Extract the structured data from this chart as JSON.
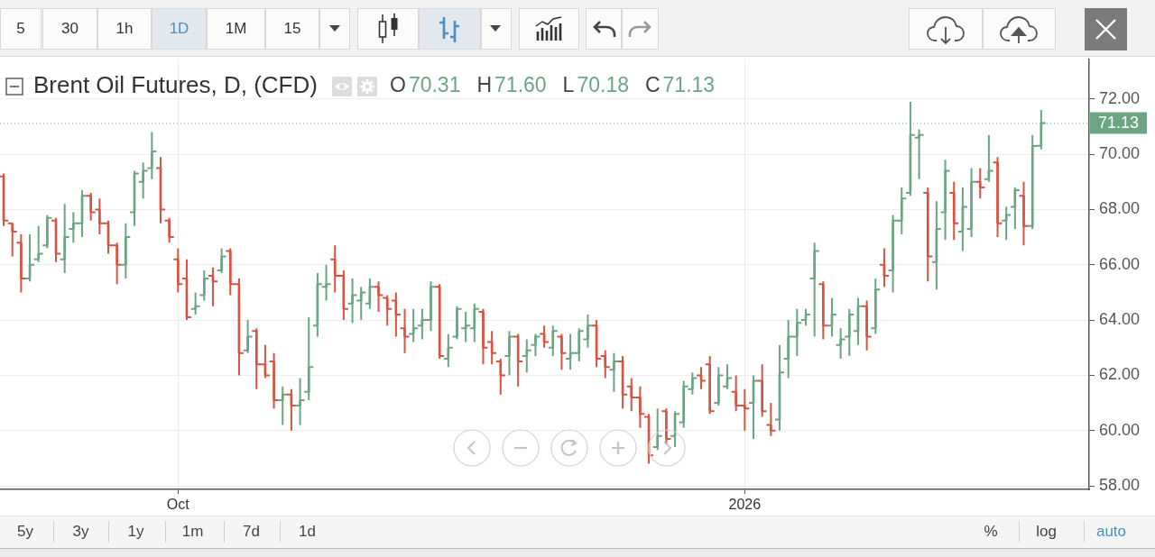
{
  "chart_data": {
    "type": "candlestick",
    "title": "Brent Oil Futures, D, (CFD)",
    "categories": [
      null,
      null,
      null,
      null,
      null,
      null,
      null,
      null,
      null,
      null,
      null,
      null,
      null,
      null,
      null,
      null,
      null,
      null,
      null,
      null,
      "Oct",
      null,
      null,
      null,
      null,
      null,
      null,
      null,
      null,
      null,
      null,
      null,
      null,
      null,
      null,
      null,
      null,
      null,
      null,
      null,
      null,
      null,
      null,
      null,
      null,
      null,
      null,
      null,
      null,
      null,
      null,
      null,
      null,
      null,
      null,
      null,
      null,
      null,
      null,
      null,
      null,
      null,
      null,
      null,
      null,
      null,
      null,
      null,
      null,
      null,
      null,
      null,
      null,
      null,
      null,
      null,
      null,
      null,
      null,
      null,
      null,
      null,
      null,
      null,
      null,
      "2026",
      null,
      null,
      null,
      null,
      null,
      null,
      null,
      null,
      null,
      null,
      null,
      null,
      null,
      null,
      null,
      null,
      null,
      null,
      null,
      null,
      null,
      null,
      null,
      null,
      null,
      null,
      null,
      null,
      null,
      null,
      null,
      null,
      null,
      null
    ],
    "ohlc": [
      [
        69.2,
        69.3,
        67.4,
        67.6
      ],
      [
        67.5,
        67.5,
        66.3,
        67.2
      ],
      [
        66.8,
        67.1,
        65.0,
        65.5
      ],
      [
        65.5,
        67.1,
        65.4,
        66.0
      ],
      [
        66.2,
        67.4,
        66.1,
        66.4
      ],
      [
        66.7,
        67.8,
        66.6,
        67.7
      ],
      [
        67.6,
        67.7,
        66.1,
        66.4
      ],
      [
        66.2,
        68.2,
        65.7,
        67.0
      ],
      [
        67.3,
        67.9,
        66.8,
        67.5
      ],
      [
        67.5,
        68.7,
        67.0,
        68.5
      ],
      [
        68.5,
        68.6,
        67.6,
        67.9
      ],
      [
        68.0,
        68.4,
        67.1,
        67.5
      ],
      [
        67.5,
        67.6,
        66.4,
        66.7
      ],
      [
        66.7,
        66.8,
        65.3,
        66.0
      ],
      [
        66.0,
        67.5,
        65.5,
        67.0
      ],
      [
        67.9,
        69.4,
        67.4,
        69.3
      ],
      [
        69.0,
        69.7,
        68.4,
        69.4
      ],
      [
        69.5,
        70.8,
        69.1,
        70.1
      ],
      [
        69.5,
        69.9,
        67.5,
        68.0
      ],
      [
        67.6,
        67.7,
        66.8,
        67.0
      ],
      [
        66.2,
        66.6,
        65.0,
        65.3
      ],
      [
        65.5,
        66.2,
        64.0,
        64.1
      ],
      [
        64.4,
        65.0,
        64.2,
        64.5
      ],
      [
        64.9,
        65.8,
        64.7,
        65.5
      ],
      [
        65.6,
        65.9,
        64.5,
        65.4
      ],
      [
        65.8,
        66.6,
        65.7,
        66.3
      ],
      [
        66.5,
        66.6,
        64.9,
        65.3
      ],
      [
        65.3,
        65.5,
        62.0,
        62.8
      ],
      [
        62.9,
        64.0,
        62.8,
        63.4
      ],
      [
        63.6,
        63.7,
        61.5,
        62.4
      ],
      [
        62.4,
        63.1,
        61.9,
        62.0
      ],
      [
        62.5,
        62.8,
        60.8,
        61.1
      ],
      [
        61.1,
        61.6,
        60.2,
        61.3
      ],
      [
        61.3,
        61.5,
        60.0,
        60.9
      ],
      [
        60.9,
        61.9,
        60.2,
        61.1
      ],
      [
        61.4,
        64.1,
        61.1,
        62.3
      ],
      [
        63.8,
        65.7,
        63.4,
        65.3
      ],
      [
        65.2,
        66.0,
        64.7,
        65.3
      ],
      [
        66.2,
        66.7,
        65.0,
        65.6
      ],
      [
        65.6,
        65.8,
        64.0,
        64.4
      ],
      [
        64.6,
        65.5,
        63.9,
        64.9
      ],
      [
        64.7,
        65.2,
        64.0,
        65.0
      ],
      [
        64.6,
        65.5,
        64.4,
        65.2
      ],
      [
        65.2,
        65.4,
        64.3,
        64.9
      ],
      [
        64.8,
        64.9,
        63.8,
        64.4
      ],
      [
        64.7,
        65.0,
        63.4,
        64.2
      ],
      [
        63.7,
        64.4,
        62.8,
        63.4
      ],
      [
        63.5,
        64.4,
        63.2,
        63.7
      ],
      [
        63.8,
        64.4,
        63.3,
        64.0
      ],
      [
        64.0,
        65.4,
        63.6,
        65.2
      ],
      [
        65.2,
        65.3,
        62.6,
        62.7
      ],
      [
        62.6,
        63.5,
        62.3,
        63.0
      ],
      [
        63.4,
        64.5,
        63.3,
        64.4
      ],
      [
        63.7,
        64.3,
        63.2,
        63.8
      ],
      [
        63.7,
        64.6,
        63.2,
        64.4
      ],
      [
        64.3,
        64.4,
        62.4,
        63.0
      ],
      [
        63.2,
        63.6,
        62.4,
        62.8
      ],
      [
        62.5,
        62.6,
        61.3,
        62.0
      ],
      [
        62.7,
        63.6,
        62.0,
        63.4
      ],
      [
        63.4,
        63.5,
        61.6,
        62.5
      ],
      [
        62.7,
        63.3,
        62.1,
        62.9
      ],
      [
        63.1,
        63.5,
        62.7,
        63.4
      ],
      [
        63.5,
        63.8,
        63.0,
        63.2
      ],
      [
        63.0,
        63.8,
        62.7,
        63.6
      ],
      [
        63.4,
        63.5,
        62.2,
        62.8
      ],
      [
        62.6,
        63.5,
        62.2,
        62.8
      ],
      [
        62.8,
        63.7,
        62.5,
        63.6
      ],
      [
        63.3,
        64.2,
        63.0,
        63.8
      ],
      [
        63.8,
        64.0,
        62.3,
        62.6
      ],
      [
        62.7,
        62.9,
        61.9,
        62.3
      ],
      [
        62.2,
        62.8,
        61.4,
        62.5
      ],
      [
        62.5,
        62.7,
        60.8,
        61.3
      ],
      [
        61.6,
        61.9,
        60.7,
        61.2
      ],
      [
        61.2,
        61.6,
        60.1,
        60.6
      ],
      [
        60.5,
        60.6,
        58.8,
        59.1
      ],
      [
        59.4,
        60.8,
        59.3,
        59.8
      ],
      [
        60.7,
        60.8,
        59.5,
        59.7
      ],
      [
        59.8,
        60.7,
        59.4,
        60.6
      ],
      [
        60.3,
        61.8,
        60.1,
        61.6
      ],
      [
        61.5,
        62.1,
        61.3,
        61.9
      ],
      [
        62.0,
        62.3,
        61.5,
        61.8
      ],
      [
        62.4,
        62.7,
        60.6,
        60.7
      ],
      [
        61.0,
        62.3,
        60.9,
        62.0
      ],
      [
        61.6,
        62.4,
        61.5,
        61.9
      ],
      [
        61.4,
        62.0,
        60.7,
        60.9
      ],
      [
        60.9,
        61.5,
        60.0,
        60.8
      ],
      [
        61.0,
        62.0,
        59.7,
        61.8
      ],
      [
        61.8,
        62.4,
        60.5,
        60.7
      ],
      [
        60.2,
        61.0,
        59.8,
        60.0
      ],
      [
        60.4,
        63.1,
        60.0,
        62.1
      ],
      [
        62.6,
        64.0,
        61.9,
        63.4
      ],
      [
        63.4,
        64.4,
        62.7,
        63.9
      ],
      [
        64.0,
        64.4,
        63.8,
        64.2
      ],
      [
        65.5,
        66.8,
        63.4,
        66.5
      ],
      [
        65.3,
        65.4,
        63.3,
        63.8
      ],
      [
        63.8,
        64.8,
        63.4,
        64.2
      ],
      [
        63.1,
        63.7,
        62.6,
        63.3
      ],
      [
        63.4,
        64.4,
        62.7,
        64.2
      ],
      [
        63.6,
        64.8,
        63.1,
        64.5
      ],
      [
        64.5,
        64.7,
        62.9,
        63.4
      ],
      [
        63.7,
        65.5,
        63.5,
        65.1
      ],
      [
        66.0,
        66.6,
        65.2,
        65.6
      ],
      [
        65.8,
        67.8,
        65.0,
        67.6
      ],
      [
        67.6,
        68.8,
        67.1,
        68.4
      ],
      [
        68.6,
        71.9,
        68.5,
        70.7
      ],
      [
        70.6,
        70.9,
        69.1,
        70.7
      ],
      [
        68.6,
        68.8,
        65.4,
        66.3
      ],
      [
        66.1,
        68.3,
        65.1,
        67.3
      ],
      [
        67.9,
        69.8,
        66.9,
        69.4
      ],
      [
        68.6,
        69.0,
        66.9,
        67.5
      ],
      [
        67.2,
        68.8,
        66.5,
        68.1
      ],
      [
        67.3,
        69.5,
        67.0,
        69.0
      ],
      [
        69.0,
        69.5,
        68.4,
        68.8
      ],
      [
        69.1,
        70.7,
        69.0,
        69.4
      ],
      [
        69.7,
        69.9,
        67.0,
        67.5
      ],
      [
        67.6,
        68.1,
        66.9,
        67.8
      ],
      [
        68.1,
        68.8,
        67.3,
        68.7
      ],
      [
        68.5,
        69.0,
        66.7,
        67.4
      ],
      [
        67.4,
        70.7,
        67.3,
        70.3
      ],
      [
        70.31,
        71.6,
        70.18,
        71.13
      ]
    ],
    "colors": [
      "#d75442",
      "#d75442",
      "#d75442",
      "#6ba583",
      "#6ba583",
      "#6ba583",
      "#d75442",
      "#6ba583",
      "#6ba583",
      "#6ba583",
      "#d75442",
      "#d75442",
      "#d75442",
      "#d75442",
      "#6ba583",
      "#6ba583",
      "#6ba583",
      "#6ba583",
      "#d75442",
      "#d75442",
      "#d75442",
      "#d75442",
      "#6ba583",
      "#6ba583",
      "#d75442",
      "#6ba583",
      "#d75442",
      "#d75442",
      "#6ba583",
      "#d75442",
      "#d75442",
      "#d75442",
      "#6ba583",
      "#d75442",
      "#6ba583",
      "#6ba583",
      "#6ba583",
      "#6ba583",
      "#d75442",
      "#d75442",
      "#6ba583",
      "#6ba583",
      "#6ba583",
      "#d75442",
      "#d75442",
      "#d75442",
      "#d75442",
      "#6ba583",
      "#6ba583",
      "#6ba583",
      "#d75442",
      "#6ba583",
      "#6ba583",
      "#6ba583",
      "#6ba583",
      "#d75442",
      "#d75442",
      "#d75442",
      "#6ba583",
      "#d75442",
      "#6ba583",
      "#6ba583",
      "#d75442",
      "#6ba583",
      "#d75442",
      "#6ba583",
      "#6ba583",
      "#6ba583",
      "#d75442",
      "#d75442",
      "#6ba583",
      "#d75442",
      "#d75442",
      "#d75442",
      "#d75442",
      "#6ba583",
      "#d75442",
      "#6ba583",
      "#6ba583",
      "#6ba583",
      "#d75442",
      "#d75442",
      "#6ba583",
      "#6ba583",
      "#d75442",
      "#d75442",
      "#6ba583",
      "#d75442",
      "#d75442",
      "#6ba583",
      "#6ba583",
      "#6ba583",
      "#6ba583",
      "#6ba583",
      "#d75442",
      "#6ba583",
      "#6ba583",
      "#6ba583",
      "#6ba583",
      "#d75442",
      "#6ba583",
      "#d75442",
      "#6ba583",
      "#6ba583",
      "#6ba583",
      "#6ba583",
      "#d75442",
      "#6ba583",
      "#6ba583",
      "#d75442",
      "#6ba583",
      "#6ba583",
      "#d75442",
      "#6ba583",
      "#d75442",
      "#6ba583",
      "#6ba583",
      "#d75442",
      "#6ba583",
      "#6ba583"
    ],
    "ylim": [
      57.87,
      73.43
    ],
    "yticks": [
      {
        "value": 58,
        "label": "58.00"
      },
      {
        "value": 60,
        "label": "60.00"
      },
      {
        "value": 62,
        "label": "62.00"
      },
      {
        "value": 64,
        "label": "64.00"
      },
      {
        "value": 66,
        "label": "66.00"
      },
      {
        "value": 68,
        "label": "68.00"
      },
      {
        "value": 70,
        "label": "70.00"
      },
      {
        "value": 72,
        "label": "72.00"
      }
    ],
    "grid": true,
    "ref_lines": [
      {
        "axis": "y",
        "value": 71.13,
        "label": "71.13",
        "color": "#6ba583",
        "line_style": "dotted"
      }
    ],
    "annotations": [
      "O",
      "70.31",
      "H",
      "71.60",
      "L",
      "70.18",
      "C",
      "71.13",
      "5",
      "30",
      "1h",
      "1D",
      "1M",
      "15",
      "5y",
      "3y",
      "1y",
      "1m",
      "7d",
      "1d",
      "%",
      "log",
      "auto"
    ]
  }
}
